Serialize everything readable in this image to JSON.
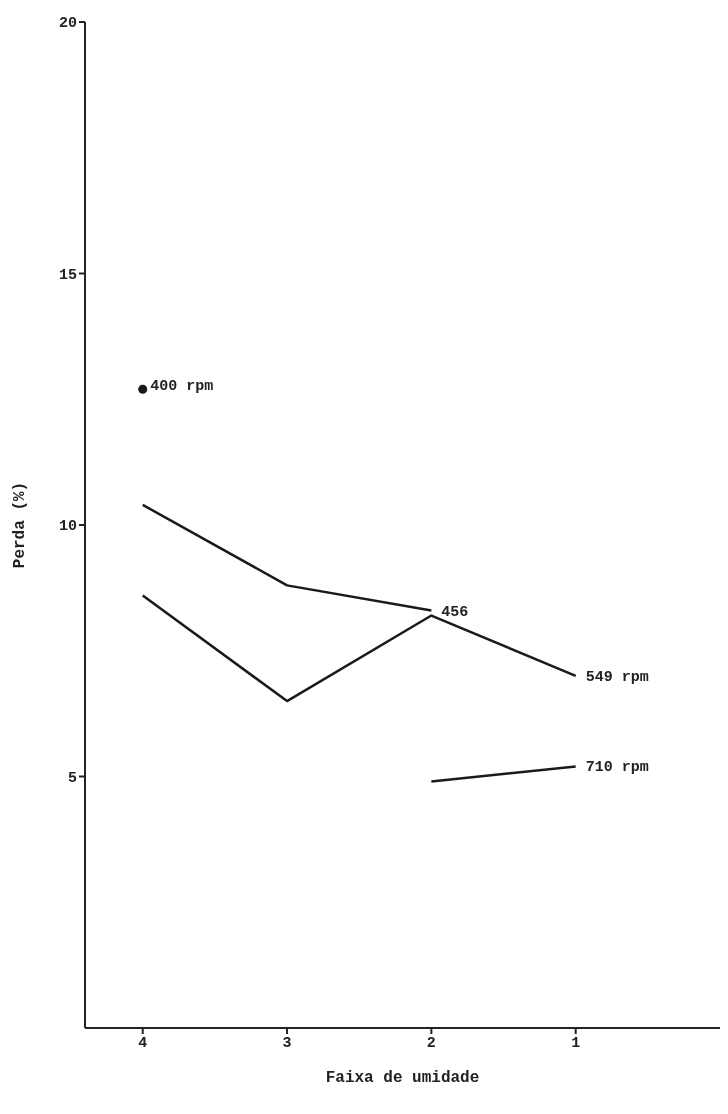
{
  "chart_data": {
    "type": "line",
    "xlabel": "Faixa de umidade",
    "ylabel": "Perda (%)",
    "xlim": [
      4.4,
      0
    ],
    "xticks": [
      4,
      3,
      2,
      1
    ],
    "ylim": [
      0,
      20
    ],
    "yticks": [
      5,
      10,
      15,
      20
    ],
    "marker": "none",
    "line_style": "solid",
    "series": [
      {
        "name": "400 rpm",
        "type": "scatter",
        "marker": "circle",
        "color": "#1a1a1a",
        "x": [
          4
        ],
        "values": [
          12.7
        ]
      },
      {
        "name": "456",
        "color": "#1a1a1a",
        "x": [
          4,
          3,
          2
        ],
        "values": [
          10.4,
          8.8,
          8.3
        ]
      },
      {
        "name": "549 rpm",
        "color": "#1a1a1a",
        "x": [
          4,
          3,
          2,
          1
        ],
        "values": [
          8.6,
          6.5,
          8.2,
          7.0
        ]
      },
      {
        "name": "710 rpm",
        "color": "#1a1a1a",
        "x": [
          2,
          1
        ],
        "values": [
          4.9,
          5.2
        ]
      }
    ]
  }
}
